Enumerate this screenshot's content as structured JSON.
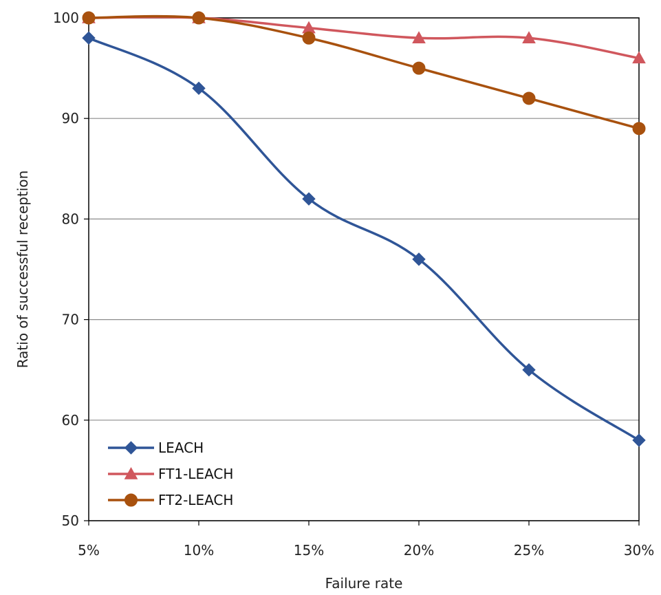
{
  "chart_data": {
    "type": "line",
    "title": "",
    "xlabel": "Failure rate",
    "ylabel": "Ratio of successful reception",
    "categories": [
      "5%",
      "10%",
      "15%",
      "20%",
      "25%",
      "30%"
    ],
    "ylim": [
      50,
      100
    ],
    "yticks": [
      50,
      60,
      70,
      80,
      90,
      100
    ],
    "grid": true,
    "legend_position": "bottom-left",
    "series": [
      {
        "name": "LEACH",
        "values": [
          98,
          93,
          82,
          76,
          65,
          58
        ],
        "color": "#2f5597",
        "marker": "diamond"
      },
      {
        "name": "FT1-LEACH",
        "values": [
          100,
          100,
          99,
          98,
          98,
          96
        ],
        "color": "#d0575d",
        "marker": "triangle"
      },
      {
        "name": "FT2-LEACH",
        "values": [
          100,
          100,
          98,
          95,
          92,
          89
        ],
        "color": "#a8510e",
        "marker": "circle"
      }
    ]
  }
}
